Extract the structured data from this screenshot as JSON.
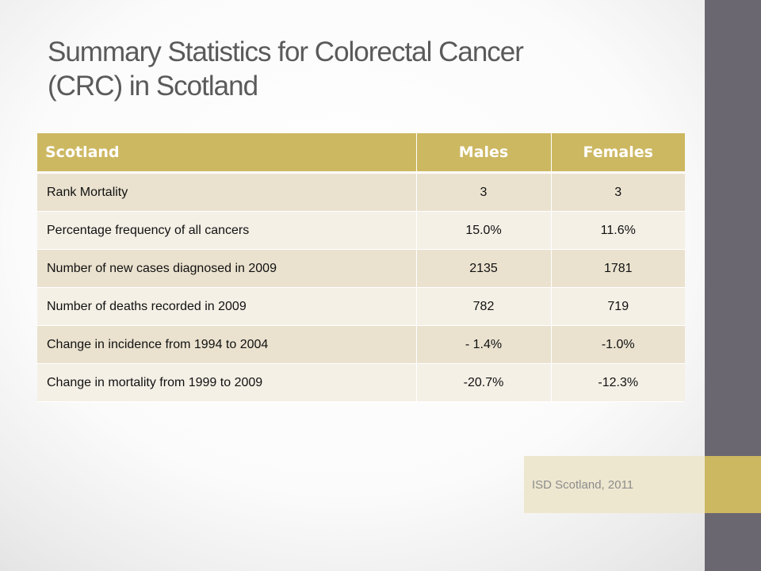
{
  "slide": {
    "title_lines": [
      "Summary Statistics for Colorectal Cancer",
      "(CRC) in Scotland"
    ],
    "source": "ISD Scotland, 2011"
  },
  "table": {
    "headers": [
      "Scotland",
      "Males",
      "Females"
    ],
    "rows": [
      {
        "label": "Rank Mortality",
        "males": "3",
        "females": "3"
      },
      {
        "label": "Percentage frequency of all cancers",
        "males": "15.0%",
        "females": "11.6%"
      },
      {
        "label": "Number of new cases diagnosed in 2009",
        "males": "2135",
        "females": "1781"
      },
      {
        "label": "Number of deaths recorded in 2009",
        "males": "782",
        "females": "719"
      },
      {
        "label": "Change in incidence from 1994 to 2004",
        "males": "- 1.4%",
        "females": "-1.0%"
      },
      {
        "label": "Change in mortality from 1999 to 2009",
        "males": "-20.7%",
        "females": "-12.3%"
      }
    ]
  },
  "colors": {
    "accent_gold": "#cdb862",
    "side_bar_gray": "#6b6770",
    "row_odd": "#eae2cf",
    "row_even": "#f4f0e6",
    "source_box": "#eee7cf",
    "title_text": "#5a5a5a"
  }
}
